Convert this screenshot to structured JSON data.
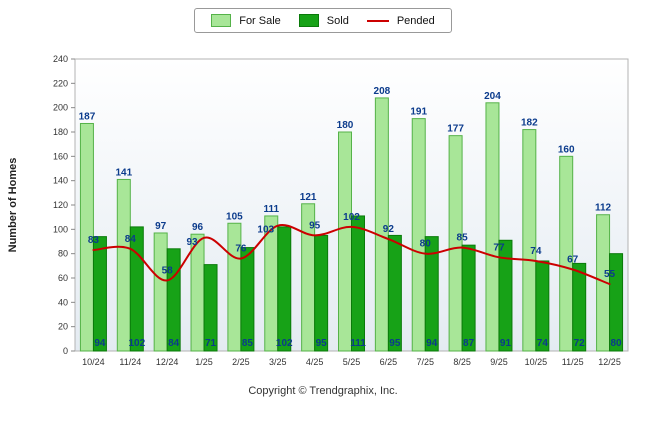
{
  "chart_data": {
    "type": "bar",
    "categories": [
      "10/24",
      "11/24",
      "12/24",
      "1/25",
      "2/25",
      "3/25",
      "4/25",
      "5/25",
      "6/25",
      "7/25",
      "8/25",
      "9/25",
      "10/25",
      "11/25",
      "12/25"
    ],
    "series": [
      {
        "name": "For Sale",
        "type": "bar",
        "color": "#A8E698",
        "border": "#55B249",
        "values": [
          187,
          141,
          97,
          96,
          105,
          111,
          121,
          180,
          208,
          191,
          177,
          204,
          182,
          160,
          112
        ]
      },
      {
        "name": "Sold",
        "type": "bar",
        "color": "#17A217",
        "border": "#0A7A0A",
        "values": [
          94,
          102,
          84,
          71,
          85,
          102,
          95,
          111,
          95,
          94,
          87,
          91,
          74,
          72,
          80
        ]
      },
      {
        "name": "Pended",
        "type": "line",
        "color": "#CC0000",
        "values": [
          83,
          84,
          58,
          93,
          76,
          103,
          95,
          102,
          92,
          80,
          85,
          77,
          74,
          67,
          55
        ]
      }
    ],
    "title": "",
    "xlabel": "",
    "ylabel": "Number of Homes",
    "ylim": [
      0,
      240
    ],
    "ytick_step": 20,
    "label_color": "#0B3B8C",
    "legend_position": "top",
    "grid": "off"
  },
  "footer": {
    "copyright": "Copyright © Trendgraphix, Inc."
  }
}
